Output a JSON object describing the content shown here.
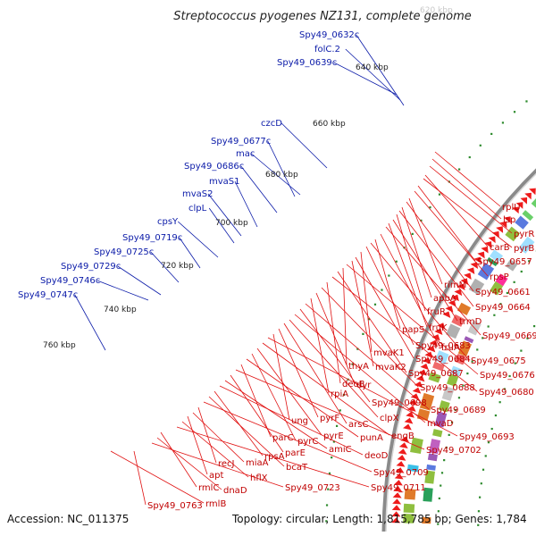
{
  "title": "Streptococcus pyogenes NZ131, complete genome",
  "footer": {
    "accession": "Accession: NC_011375",
    "summary": "Topology: circular; Length: 1,815,785 bp; Genes: 1,784"
  },
  "partial_top_label": "620 kbp",
  "kbp_ticks": [
    "640 kbp",
    "660 kbp",
    "680 kbp",
    "700 kbp",
    "720 kbp",
    "740 kbp",
    "760 kbp"
  ],
  "blue_labels": [
    "Spy49_0632c",
    "folC.2",
    "Spy49_0639c",
    "czcD",
    "Spy49_0677c",
    "mac",
    "Spy49_0686c",
    "mvaS1",
    "mvaS2",
    "clpL",
    "cpsY",
    "Spy49_0719c",
    "Spy49_0725c",
    "Spy49_0729c",
    "Spy49_0746c",
    "Spy49_0747c"
  ],
  "red_labels": [
    "rplU",
    "lsp",
    "pyrR",
    "carB",
    "pyrB",
    "Spy49_0657",
    "rpsP",
    "rimM",
    "Spy49_0661",
    "apbA",
    "Spy49_0664",
    "fruR",
    "trmD",
    "fruK",
    "Spy49_0669",
    "fruA",
    "papS",
    "Spy49_0675",
    "Spy49_0683",
    "mvaK1",
    "Spy49_0684",
    "mvaK2",
    "Spy49_0676",
    "thyA",
    "Spy49_0687",
    "Spy49_0680",
    "deoB",
    "Spy49_0688",
    "dyr",
    "rpiA",
    "Spy49_0689",
    "Spy49_0698",
    "mvaD",
    "clpX",
    "arsC",
    "pyrF",
    "ung",
    "Spy49_0693",
    "engB",
    "pyrE",
    "pyrC",
    "punA",
    "parC",
    "Spy49_0702",
    "parE",
    "amiC",
    "deoD",
    "rpsA",
    "bcaT",
    "Spy49_0709",
    "recJ",
    "miaA",
    "apt",
    "hflX",
    "Spy49_0711",
    "rmlC",
    "dnaD",
    "Spy49_0723",
    "Spy49_0763",
    "rmlB"
  ]
}
